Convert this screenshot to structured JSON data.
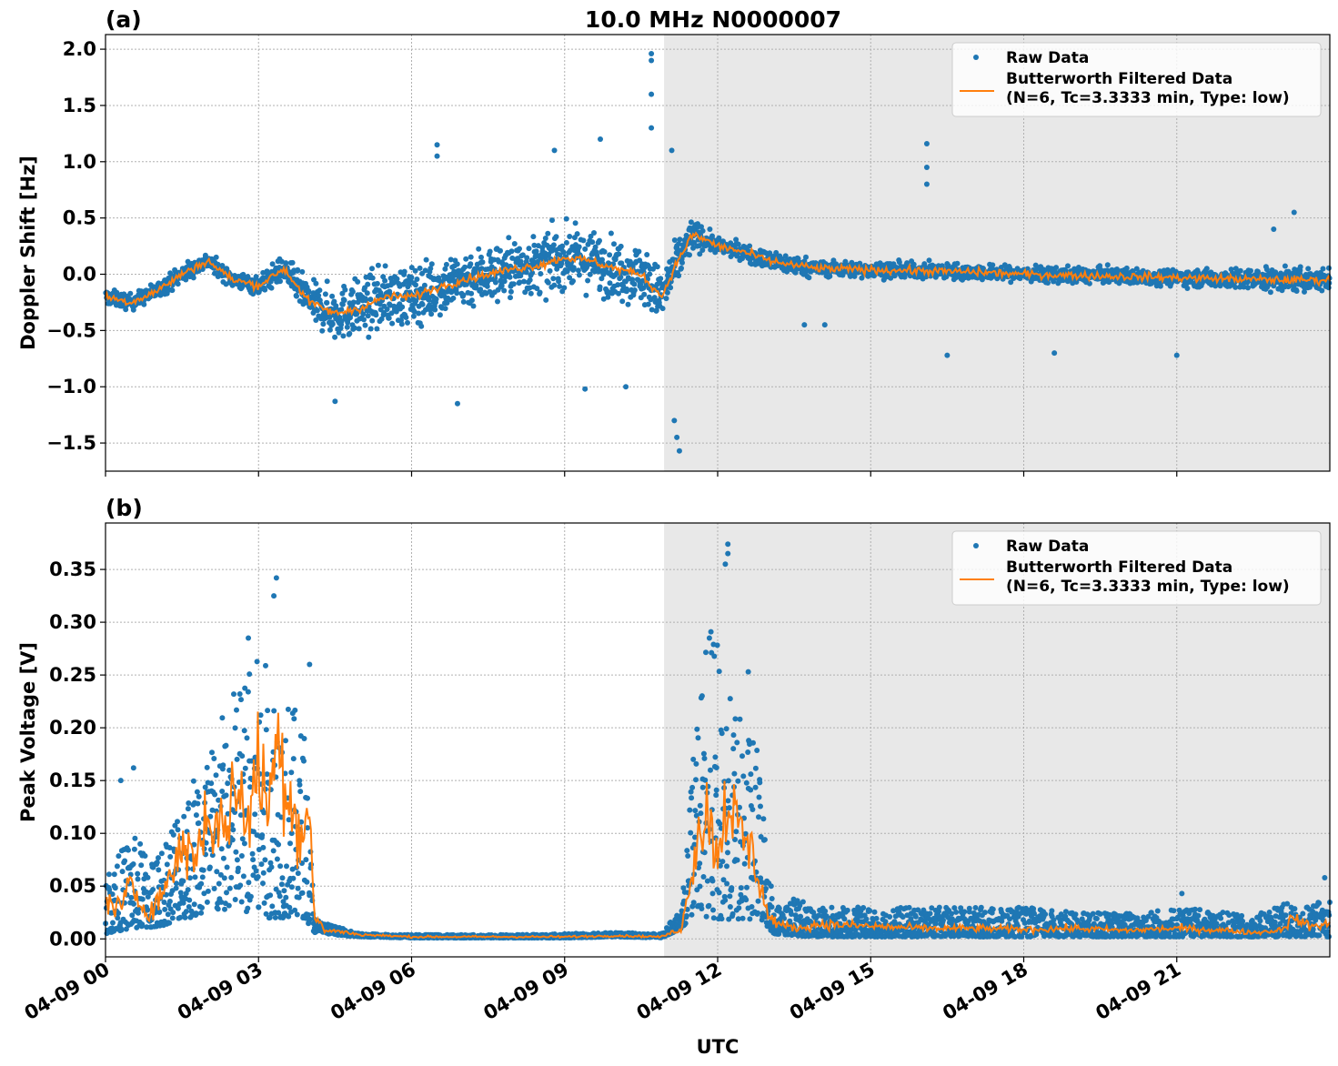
{
  "figure": {
    "title": "10.0 MHz N0000007",
    "xlabel": "UTC",
    "x_tick_labels": [
      "04-09 00",
      "04-09 03",
      "04-09 06",
      "04-09 09",
      "04-09 12",
      "04-09 15",
      "04-09 18",
      "04-09 21"
    ],
    "night_shading": {
      "color": "#e8e8e8",
      "start_hour": 10.95,
      "end_hour": 24.0
    },
    "colors": {
      "raw": "#1f77b4",
      "filtered": "#ff7f0e"
    }
  },
  "chart_data": [
    {
      "type": "scatter",
      "panel": "(a)",
      "title": "10.0 MHz N0000007",
      "ylabel": "Doppler Shift [Hz]",
      "xlabel": "UTC",
      "xlim_hours": [
        0,
        24
      ],
      "ylim": [
        -1.75,
        2.13
      ],
      "yticks": [
        -1.5,
        -1.0,
        -0.5,
        0.0,
        0.5,
        1.0,
        1.5,
        2.0
      ],
      "ytick_labels": [
        "−1.5",
        "−1.0",
        "−0.5",
        "0.0",
        "0.5",
        "1.0",
        "1.5",
        "2.0"
      ],
      "grid": true,
      "legend": {
        "placement": "upper-right",
        "entries": [
          "Raw Data",
          "Butterworth Filtered Data",
          "(N=6, Tc=3.3333 min, Type: low)"
        ]
      },
      "series": [
        {
          "name": "Raw Data",
          "style": "points",
          "color": "#1f77b4",
          "envelope": {
            "x": [
              0,
              0.5,
              1,
              1.5,
              2,
              2.5,
              3,
              3.5,
              4,
              4.5,
              5,
              5.5,
              6,
              6.5,
              7,
              7.5,
              8,
              8.5,
              9,
              9.5,
              10,
              10.5,
              10.9,
              11.2,
              11.5,
              11.8,
              12,
              12.5,
              13,
              13.5,
              14,
              15,
              16,
              17,
              18,
              19,
              20,
              21,
              22,
              23,
              24
            ],
            "center": [
              -0.2,
              -0.25,
              -0.15,
              0.0,
              0.12,
              -0.05,
              -0.1,
              0.05,
              -0.25,
              -0.35,
              -0.3,
              -0.2,
              -0.2,
              -0.12,
              -0.05,
              0.0,
              0.05,
              0.08,
              0.15,
              0.12,
              0.05,
              0.0,
              -0.2,
              0.1,
              0.35,
              0.3,
              0.25,
              0.2,
              0.12,
              0.08,
              0.05,
              0.04,
              0.03,
              0.02,
              0.0,
              -0.01,
              -0.02,
              -0.03,
              -0.04,
              -0.05,
              -0.05
            ],
            "spread": [
              0.12,
              0.12,
              0.12,
              0.15,
              0.12,
              0.12,
              0.15,
              0.2,
              0.3,
              0.4,
              0.45,
              0.45,
              0.45,
              0.45,
              0.45,
              0.45,
              0.45,
              0.45,
              0.45,
              0.45,
              0.45,
              0.45,
              0.4,
              0.35,
              0.25,
              0.15,
              0.12,
              0.12,
              0.15,
              0.15,
              0.12,
              0.12,
              0.12,
              0.12,
              0.12,
              0.12,
              0.12,
              0.12,
              0.15,
              0.18,
              0.18
            ]
          },
          "outliers": [
            {
              "x": 10.7,
              "y": 1.96
            },
            {
              "x": 10.7,
              "y": 1.9
            },
            {
              "x": 10.7,
              "y": 1.6
            },
            {
              "x": 10.7,
              "y": 1.3
            },
            {
              "x": 11.1,
              "y": 1.1
            },
            {
              "x": 11.15,
              "y": -1.3
            },
            {
              "x": 11.25,
              "y": -1.57
            },
            {
              "x": 11.2,
              "y": -1.45
            },
            {
              "x": 6.5,
              "y": 1.15
            },
            {
              "x": 6.5,
              "y": 1.05
            },
            {
              "x": 8.8,
              "y": 1.1
            },
            {
              "x": 9.7,
              "y": 1.2
            },
            {
              "x": 16.1,
              "y": 1.16
            },
            {
              "x": 16.1,
              "y": 0.95
            },
            {
              "x": 16.1,
              "y": 0.8
            },
            {
              "x": 6.9,
              "y": -1.15
            },
            {
              "x": 4.5,
              "y": -1.13
            },
            {
              "x": 18.6,
              "y": -0.7
            },
            {
              "x": 21.0,
              "y": -0.72
            },
            {
              "x": 16.5,
              "y": -0.72
            },
            {
              "x": 13.7,
              "y": -0.45
            },
            {
              "x": 14.1,
              "y": -0.45
            },
            {
              "x": 10.2,
              "y": -1.0
            },
            {
              "x": 9.4,
              "y": -1.02
            },
            {
              "x": 23.3,
              "y": 0.55
            },
            {
              "x": 22.9,
              "y": 0.4
            }
          ]
        },
        {
          "name": "Butterworth Filtered Data",
          "style": "line",
          "color": "#ff7f0e",
          "x": [
            0,
            0.5,
            1,
            1.5,
            2,
            2.5,
            3,
            3.5,
            4,
            4.5,
            5,
            5.5,
            6,
            6.5,
            7,
            7.5,
            8,
            8.5,
            9,
            9.5,
            10,
            10.5,
            10.9,
            11.2,
            11.5,
            11.8,
            12,
            12.5,
            13,
            13.5,
            14,
            15,
            16,
            17,
            18,
            19,
            20,
            21,
            22,
            23,
            24
          ],
          "y": [
            -0.2,
            -0.25,
            -0.15,
            0.0,
            0.12,
            -0.05,
            -0.1,
            0.05,
            -0.25,
            -0.35,
            -0.3,
            -0.2,
            -0.2,
            -0.12,
            -0.05,
            0.0,
            0.05,
            0.08,
            0.15,
            0.12,
            0.05,
            0.0,
            -0.2,
            0.1,
            0.35,
            0.3,
            0.25,
            0.2,
            0.12,
            0.08,
            0.05,
            0.04,
            0.03,
            0.02,
            0.0,
            -0.01,
            -0.02,
            -0.03,
            -0.04,
            -0.05,
            -0.05
          ]
        }
      ]
    },
    {
      "type": "scatter",
      "panel": "(b)",
      "ylabel": "Peak Voltage [V]",
      "xlabel": "UTC",
      "xlim_hours": [
        0,
        24
      ],
      "ylim": [
        -0.017,
        0.394
      ],
      "yticks": [
        0.0,
        0.05,
        0.1,
        0.15,
        0.2,
        0.25,
        0.3,
        0.35
      ],
      "ytick_labels": [
        "0.00",
        "0.05",
        "0.10",
        "0.15",
        "0.20",
        "0.25",
        "0.30",
        "0.35"
      ],
      "grid": true,
      "legend": {
        "placement": "upper-right",
        "entries": [
          "Raw Data",
          "Butterworth Filtered Data",
          "(N=6, Tc=3.3333 min, Type: low)"
        ]
      },
      "series": [
        {
          "name": "Raw Data",
          "style": "points",
          "color": "#1f77b4",
          "envelope": {
            "x": [
              0,
              0.5,
              1,
              1.5,
              2,
              2.5,
              3,
              3.5,
              3.9,
              4.1,
              4.5,
              5,
              6,
              7,
              8,
              9,
              10,
              10.9,
              11.3,
              11.6,
              11.8,
              12,
              12.3,
              12.6,
              12.8,
              13.1,
              13.5,
              14,
              15,
              16,
              17,
              18,
              19,
              20,
              21,
              22,
              22.5,
              23,
              23.5,
              24
            ],
            "low": [
              0.005,
              0.01,
              0.01,
              0.02,
              0.02,
              0.03,
              0.02,
              0.02,
              0.02,
              0.006,
              0.004,
              0.002,
              0.001,
              0.001,
              0.001,
              0.001,
              0.002,
              0.001,
              0.01,
              0.03,
              0.02,
              0.015,
              0.02,
              0.015,
              0.02,
              0.005,
              0.003,
              0.002,
              0.002,
              0.002,
              0.002,
              0.002,
              0.002,
              0.002,
              0.002,
              0.002,
              0.002,
              0.002,
              0.002,
              0.002
            ],
            "high": [
              0.06,
              0.1,
              0.08,
              0.14,
              0.18,
              0.24,
              0.27,
              0.24,
              0.2,
              0.02,
              0.012,
              0.005,
              0.004,
              0.004,
              0.004,
              0.005,
              0.006,
              0.005,
              0.03,
              0.22,
              0.3,
              0.28,
              0.22,
              0.2,
              0.18,
              0.03,
              0.04,
              0.03,
              0.03,
              0.03,
              0.03,
              0.03,
              0.025,
              0.025,
              0.03,
              0.025,
              0.02,
              0.035,
              0.03,
              0.04
            ]
          },
          "outliers": [
            {
              "x": 3.35,
              "y": 0.342
            },
            {
              "x": 3.3,
              "y": 0.325
            },
            {
              "x": 12.2,
              "y": 0.374
            },
            {
              "x": 12.2,
              "y": 0.365
            },
            {
              "x": 12.15,
              "y": 0.355
            },
            {
              "x": 2.8,
              "y": 0.285
            },
            {
              "x": 12.6,
              "y": 0.253
            },
            {
              "x": 4.0,
              "y": 0.26
            },
            {
              "x": 0.55,
              "y": 0.162
            },
            {
              "x": 0.3,
              "y": 0.15
            },
            {
              "x": 21.1,
              "y": 0.043
            },
            {
              "x": 23.9,
              "y": 0.058
            }
          ]
        },
        {
          "name": "Butterworth Filtered Data",
          "style": "line",
          "color": "#ff7f0e",
          "x": [
            0,
            0.3,
            0.5,
            0.8,
            1,
            1.3,
            1.5,
            1.8,
            2,
            2.3,
            2.5,
            2.8,
            3,
            3.2,
            3.4,
            3.6,
            3.8,
            4.0,
            4.1,
            4.3,
            4.6,
            5,
            6,
            7,
            8,
            9,
            10,
            10.9,
            11.3,
            11.6,
            11.8,
            12,
            12.2,
            12.4,
            12.6,
            12.8,
            13.0,
            13.3,
            13.6,
            14,
            15,
            16,
            17,
            18,
            19,
            20,
            21,
            22,
            22.5,
            23,
            23.3,
            23.6,
            24
          ],
          "y": [
            0.035,
            0.03,
            0.05,
            0.025,
            0.035,
            0.06,
            0.09,
            0.08,
            0.12,
            0.1,
            0.14,
            0.12,
            0.16,
            0.13,
            0.19,
            0.14,
            0.1,
            0.12,
            0.02,
            0.008,
            0.007,
            0.004,
            0.002,
            0.002,
            0.002,
            0.002,
            0.003,
            0.002,
            0.01,
            0.1,
            0.12,
            0.08,
            0.14,
            0.1,
            0.09,
            0.06,
            0.02,
            0.012,
            0.01,
            0.014,
            0.012,
            0.01,
            0.01,
            0.009,
            0.01,
            0.008,
            0.01,
            0.008,
            0.006,
            0.008,
            0.02,
            0.012,
            0.014
          ]
        }
      ]
    }
  ]
}
